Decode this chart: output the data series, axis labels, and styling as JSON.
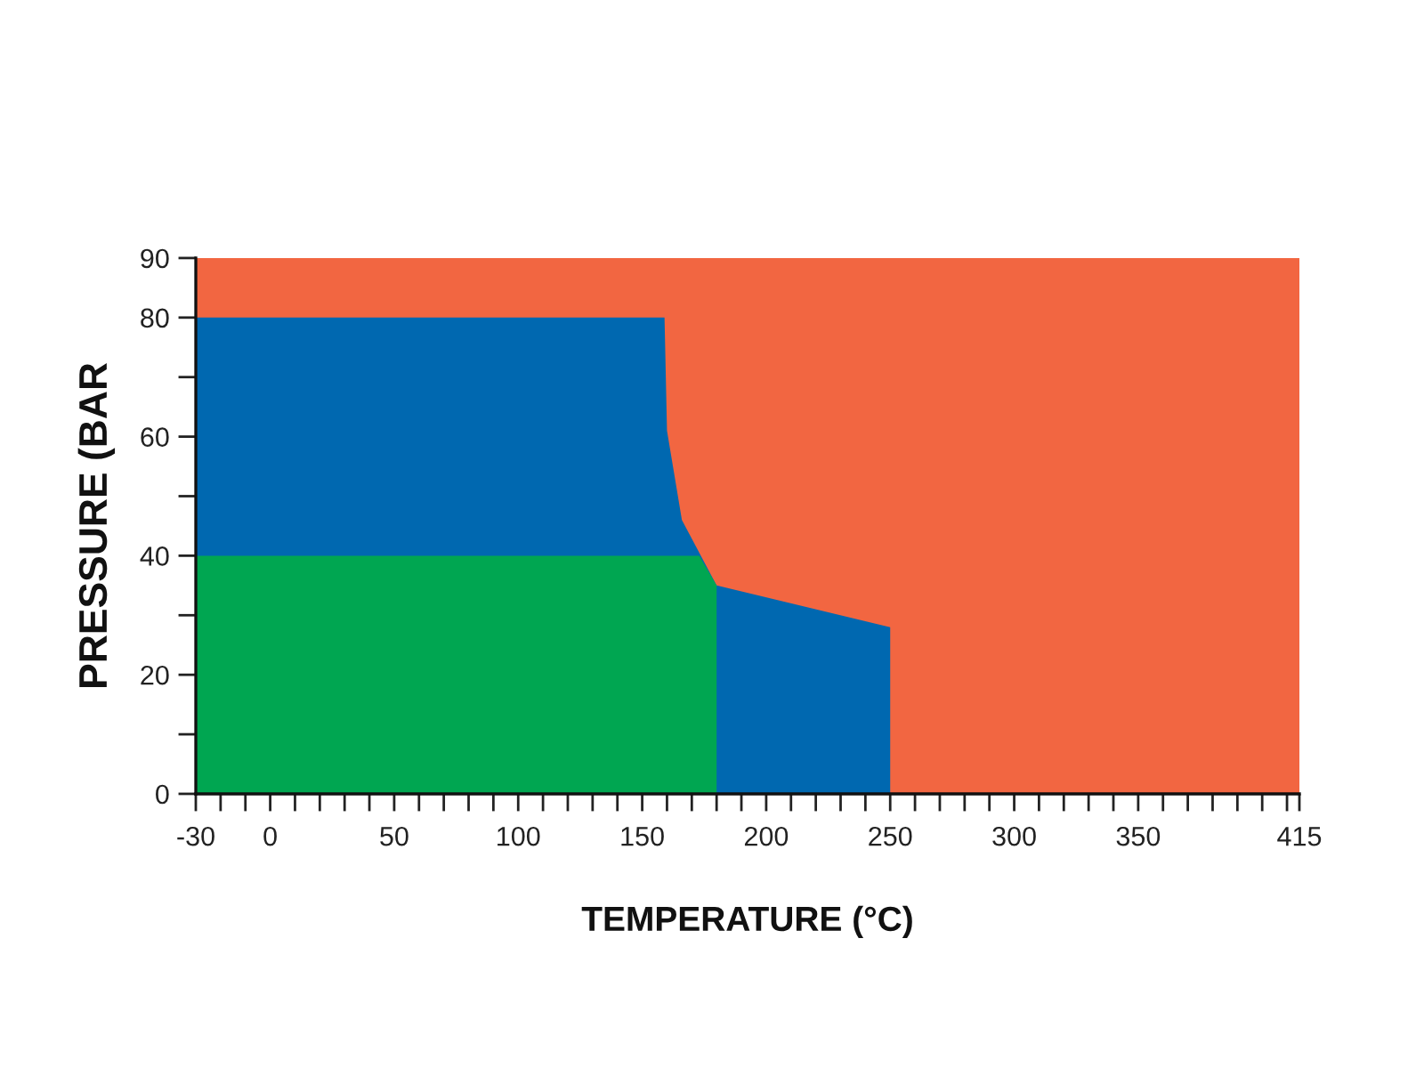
{
  "chart_data": {
    "type": "area",
    "xlabel": "TEMPERATURE (°C)",
    "ylabel": "PRESSURE (BAR",
    "series": [
      {
        "color": "#00a651",
        "x": [
          -30,
          173,
          180,
          180
        ],
        "values": [
          40,
          40,
          35,
          0
        ]
      },
      {
        "color": "#0068b0",
        "x": [
          -30,
          159,
          160,
          166,
          180,
          250,
          250
        ],
        "values": [
          80,
          80,
          61,
          46,
          35,
          28,
          0
        ]
      }
    ],
    "bands": [
      {
        "axis": "y",
        "from": 0,
        "to": 90,
        "color": "#f26641"
      }
    ],
    "xlim": [
      -30,
      415
    ],
    "xticks": [
      -30,
      {
        "value": -20,
        "label": null
      },
      {
        "value": -10,
        "label": null
      },
      0,
      {
        "value": 10,
        "label": null
      },
      {
        "value": 20,
        "label": null
      },
      {
        "value": 30,
        "label": null
      },
      {
        "value": 40,
        "label": null
      },
      50,
      {
        "value": 60,
        "label": null
      },
      {
        "value": 70,
        "label": null
      },
      {
        "value": 80,
        "label": null
      },
      {
        "value": 90,
        "label": null
      },
      100,
      {
        "value": 110,
        "label": null
      },
      {
        "value": 120,
        "label": null
      },
      {
        "value": 130,
        "label": null
      },
      {
        "value": 140,
        "label": null
      },
      150,
      {
        "value": 160,
        "label": null
      },
      {
        "value": 170,
        "label": null
      },
      {
        "value": 180,
        "label": null
      },
      {
        "value": 190,
        "label": null
      },
      200,
      {
        "value": 210,
        "label": null
      },
      {
        "value": 220,
        "label": null
      },
      {
        "value": 230,
        "label": null
      },
      {
        "value": 240,
        "label": null
      },
      250,
      {
        "value": 260,
        "label": null
      },
      {
        "value": 270,
        "label": null
      },
      {
        "value": 280,
        "label": null
      },
      {
        "value": 290,
        "label": null
      },
      300,
      {
        "value": 310,
        "label": null
      },
      {
        "value": 320,
        "label": null
      },
      {
        "value": 330,
        "label": null
      },
      {
        "value": 340,
        "label": null
      },
      350,
      {
        "value": 360,
        "label": null
      },
      {
        "value": 370,
        "label": null
      },
      {
        "value": 380,
        "label": null
      },
      {
        "value": 390,
        "label": null
      },
      {
        "value": 400,
        "label": null
      },
      {
        "value": 410,
        "label": null
      },
      415
    ],
    "ylim": [
      0,
      90
    ],
    "yticks": [
      0,
      {
        "value": 10,
        "label": null
      },
      20,
      {
        "value": 30,
        "label": null
      },
      40,
      {
        "value": 50,
        "label": null
      },
      60,
      {
        "value": 70,
        "label": null
      },
      80,
      90
    ]
  }
}
